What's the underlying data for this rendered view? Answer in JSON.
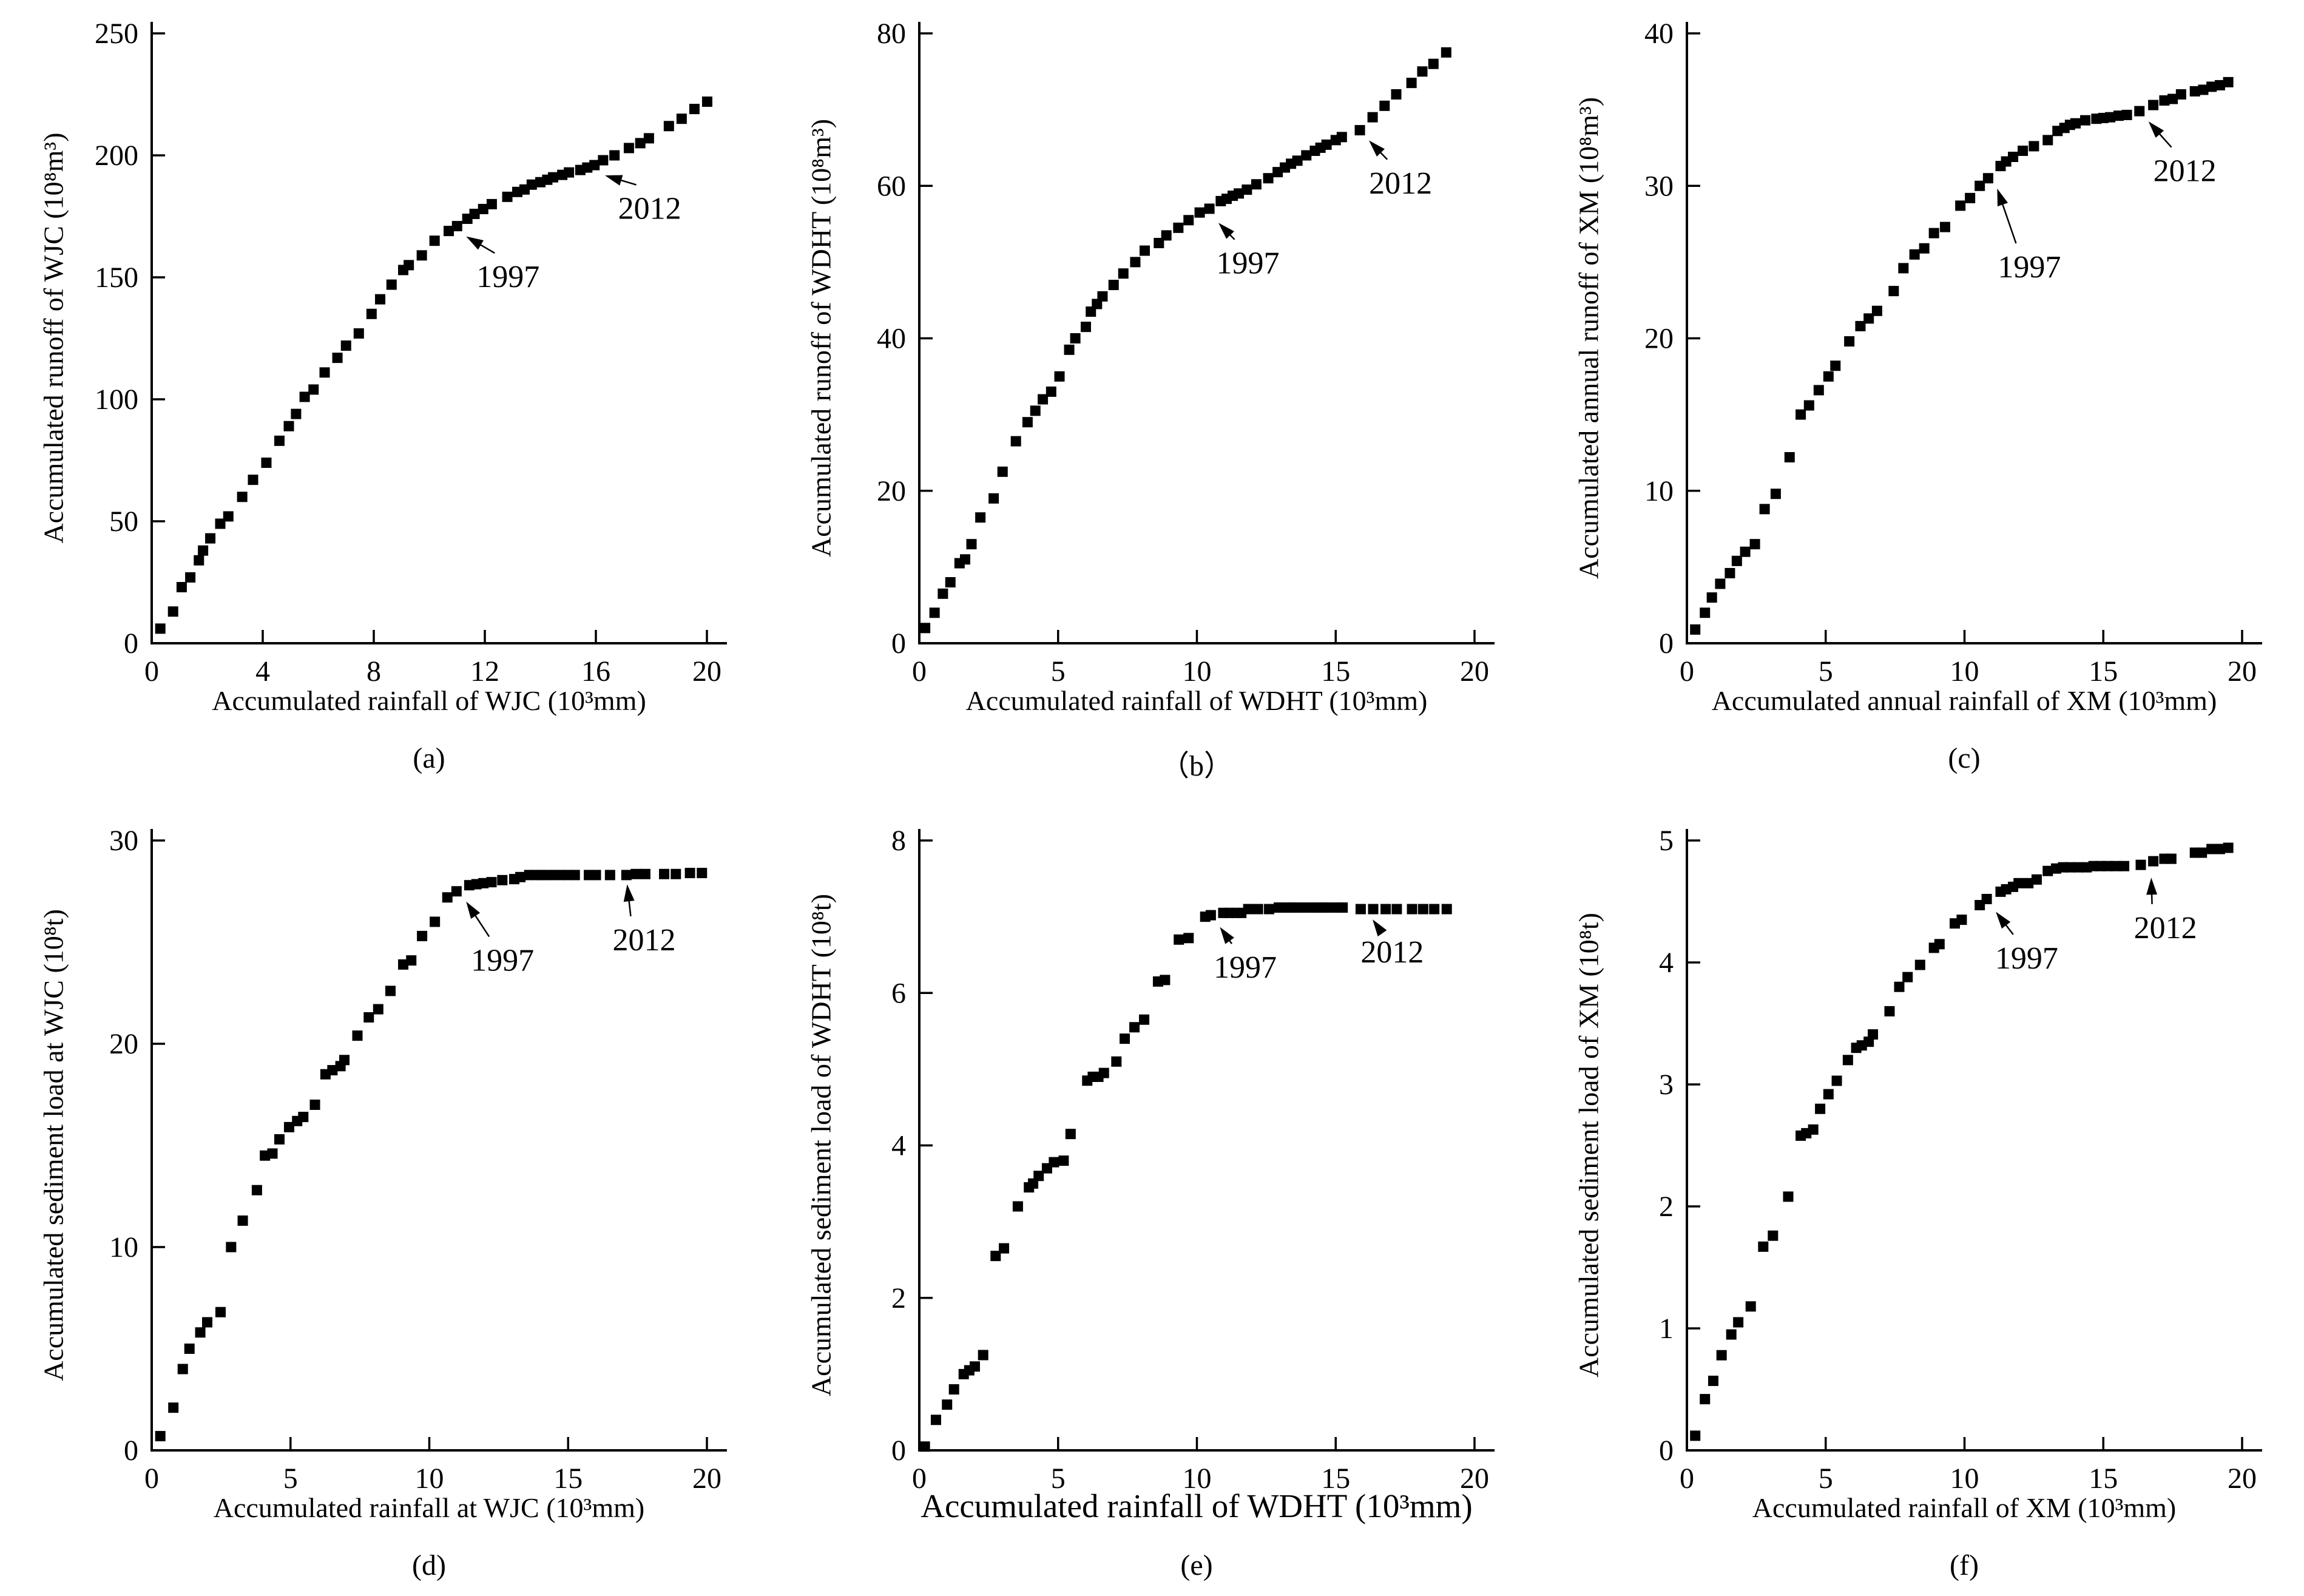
{
  "figure_title": "",
  "accent_color": "#000000",
  "chart_data": [
    {
      "type": "scatter",
      "panel": "a",
      "caption": "(a)",
      "xlabel": "Accumulated rainfall of WJC (10³mm)",
      "ylabel": "Accumulated runoff of WJC (10⁸m³)",
      "xlim": [
        0,
        20
      ],
      "ylim": [
        0,
        250
      ],
      "xticks": [
        0,
        4,
        8,
        12,
        16,
        20
      ],
      "yticks": [
        0,
        50,
        100,
        150,
        200,
        250
      ],
      "grid": false,
      "marker": "square",
      "color": "#000000",
      "x": [
        0.31,
        0.77,
        1.08,
        1.39,
        1.7,
        1.85,
        2.11,
        2.47,
        2.76,
        3.26,
        3.65,
        4.13,
        4.6,
        4.94,
        5.2,
        5.51,
        5.83,
        6.23,
        6.69,
        7.0,
        7.46,
        7.92,
        8.23,
        8.64,
        9.06,
        9.26,
        9.73,
        10.19,
        10.7,
        11.0,
        11.37,
        11.63,
        11.94,
        12.25,
        12.81,
        13.17,
        13.43,
        13.69,
        14.0,
        14.25,
        14.46,
        14.79,
        15.03,
        15.44,
        15.69,
        15.95,
        16.26,
        16.67,
        17.19,
        17.6,
        17.91,
        18.63,
        19.09,
        19.55,
        20.01
      ],
      "y": [
        6,
        13,
        23,
        27,
        34,
        38,
        43,
        49,
        52,
        60,
        67,
        74,
        83,
        89,
        94,
        101,
        104,
        111,
        117,
        122,
        127,
        135,
        141,
        147,
        153,
        155,
        159,
        165,
        169,
        171,
        174,
        176,
        178,
        180,
        183,
        185,
        186,
        188,
        189,
        190,
        191,
        192,
        193,
        194,
        195,
        196,
        198,
        200,
        203,
        205,
        207,
        212,
        215,
        219,
        222
      ],
      "annotations": [
        {
          "label": "1997",
          "point": [
            11.0,
            171
          ],
          "text": [
            11.7,
            146
          ]
        },
        {
          "label": "2012",
          "point": [
            16.0,
            196
          ],
          "text": [
            16.8,
            174
          ]
        }
      ]
    },
    {
      "type": "scatter",
      "panel": "b",
      "caption": "（b）",
      "xlabel": "Accumulated rainfall of WDHT (10³mm)",
      "ylabel": "Accumulated runoff of WDHT (10⁸m³)",
      "xlim": [
        0,
        20
      ],
      "ylim": [
        0,
        80
      ],
      "xticks": [
        0,
        5,
        10,
        15,
        20
      ],
      "yticks": [
        0,
        20,
        40,
        60,
        80
      ],
      "grid": false,
      "marker": "square",
      "color": "#000000",
      "x": [
        0.21,
        0.55,
        0.85,
        1.12,
        1.45,
        1.65,
        1.88,
        2.2,
        2.68,
        3.0,
        3.48,
        3.9,
        4.18,
        4.45,
        4.75,
        5.05,
        5.4,
        5.62,
        6.0,
        6.18,
        6.4,
        6.6,
        7.0,
        7.35,
        7.78,
        8.12,
        8.63,
        8.9,
        9.33,
        9.7,
        10.1,
        10.45,
        10.86,
        11.07,
        11.29,
        11.51,
        11.8,
        12.14,
        12.57,
        12.91,
        13.17,
        13.39,
        13.62,
        13.94,
        14.25,
        14.45,
        14.67,
        15.0,
        15.22,
        15.87,
        16.33,
        16.76,
        17.18,
        17.73,
        18.12,
        18.52,
        18.98
      ],
      "y": [
        2.0,
        4.0,
        6.5,
        8.0,
        10.5,
        11.0,
        13.0,
        16.5,
        19.0,
        22.5,
        26.5,
        29.0,
        30.5,
        32.0,
        33.0,
        35.0,
        38.5,
        40.0,
        41.5,
        43.5,
        44.5,
        45.5,
        47.0,
        48.5,
        50.0,
        51.5,
        52.5,
        53.5,
        54.5,
        55.5,
        56.5,
        57.0,
        58.0,
        58.3,
        58.7,
        59.0,
        59.5,
        60.2,
        61.0,
        61.8,
        62.4,
        62.9,
        63.3,
        64.0,
        64.6,
        65.0,
        65.4,
        66.0,
        66.4,
        67.3,
        69.0,
        70.5,
        72.0,
        73.5,
        75.0,
        76.0,
        77.5
      ],
      "annotations": [
        {
          "label": "1997",
          "point": [
            10.45,
            56.5
          ],
          "text": [
            10.7,
            48.5
          ]
        },
        {
          "label": "2012",
          "point": [
            15.87,
            67.3
          ],
          "text": [
            16.2,
            59.0
          ]
        }
      ]
    },
    {
      "type": "scatter",
      "panel": "c",
      "caption": "(c)",
      "xlabel": "Accumulated annual rainfall of XM (10³mm)",
      "ylabel": "Accumulated annual runoff of XM (10⁸m³)",
      "xlim": [
        0,
        20
      ],
      "ylim": [
        0,
        40
      ],
      "xticks": [
        0,
        5,
        10,
        15,
        20
      ],
      "yticks": [
        0,
        10,
        20,
        30,
        40
      ],
      "grid": false,
      "marker": "square",
      "color": "#000000",
      "x": [
        0.3,
        0.65,
        0.9,
        1.2,
        1.55,
        1.8,
        2.1,
        2.45,
        2.8,
        3.2,
        3.7,
        4.1,
        4.4,
        4.75,
        5.1,
        5.35,
        5.85,
        6.25,
        6.55,
        6.85,
        7.45,
        7.8,
        8.2,
        8.55,
        8.9,
        9.3,
        9.85,
        10.2,
        10.55,
        10.85,
        11.3,
        11.5,
        11.75,
        12.1,
        12.5,
        13.0,
        13.35,
        13.6,
        13.8,
        14.0,
        14.35,
        14.75,
        15.0,
        15.25,
        15.55,
        15.85,
        16.3,
        16.8,
        17.2,
        17.5,
        17.8,
        18.3,
        18.6,
        18.9,
        19.2,
        19.5
      ],
      "y": [
        0.9,
        2.0,
        3.0,
        3.9,
        4.6,
        5.4,
        6.0,
        6.5,
        8.8,
        9.8,
        12.2,
        15.0,
        15.6,
        16.6,
        17.5,
        18.2,
        19.8,
        20.8,
        21.3,
        21.8,
        23.1,
        24.6,
        25.5,
        25.9,
        26.9,
        27.3,
        28.7,
        29.2,
        30.0,
        30.5,
        31.3,
        31.6,
        31.9,
        32.3,
        32.6,
        33.0,
        33.6,
        33.8,
        34.0,
        34.1,
        34.3,
        34.4,
        34.45,
        34.5,
        34.6,
        34.65,
        34.9,
        35.3,
        35.6,
        35.7,
        36.0,
        36.2,
        36.3,
        36.5,
        36.6,
        36.8
      ],
      "annotations": [
        {
          "label": "1997",
          "point": [
            10.85,
            30.5
          ],
          "text": [
            11.2,
            24.0
          ]
        },
        {
          "label": "2012",
          "point": [
            16.3,
            34.9
          ],
          "text": [
            16.8,
            30.3
          ]
        }
      ]
    },
    {
      "type": "scatter",
      "panel": "d",
      "caption": "(d)",
      "xlabel": "Accumulated rainfall at WJC (10³mm)",
      "ylabel": "Accumulated sediment load at WJC (10⁸t)",
      "xlim": [
        0,
        20
      ],
      "ylim": [
        0,
        30
      ],
      "xticks": [
        0,
        5,
        10,
        15,
        20
      ],
      "yticks": [
        0,
        10,
        20,
        30
      ],
      "grid": false,
      "marker": "square",
      "color": "#000000",
      "x": [
        0.31,
        0.78,
        1.12,
        1.36,
        1.75,
        2.0,
        2.48,
        2.86,
        3.28,
        3.79,
        4.08,
        4.35,
        4.6,
        4.95,
        5.24,
        5.46,
        5.88,
        6.26,
        6.51,
        6.8,
        6.94,
        7.41,
        7.82,
        8.16,
        8.6,
        9.06,
        9.35,
        9.74,
        10.2,
        10.65,
        10.98,
        11.44,
        11.7,
        11.95,
        12.24,
        12.63,
        13.06,
        13.28,
        13.6,
        13.82,
        14.02,
        14.24,
        14.49,
        14.74,
        14.99,
        15.24,
        15.75,
        16.0,
        16.51,
        17.1,
        17.44,
        17.78,
        18.46,
        18.88,
        19.39,
        19.82
      ],
      "y": [
        0.7,
        2.1,
        4.0,
        5.0,
        5.8,
        6.3,
        6.8,
        10.0,
        11.3,
        12.8,
        14.5,
        14.6,
        15.3,
        15.9,
        16.2,
        16.4,
        17.0,
        18.5,
        18.7,
        18.9,
        19.2,
        20.4,
        21.3,
        21.7,
        22.6,
        23.9,
        24.1,
        25.3,
        26.0,
        27.2,
        27.5,
        27.8,
        27.85,
        27.9,
        27.95,
        28.05,
        28.1,
        28.2,
        28.3,
        28.3,
        28.3,
        28.3,
        28.3,
        28.3,
        28.3,
        28.3,
        28.3,
        28.3,
        28.3,
        28.3,
        28.35,
        28.35,
        28.35,
        28.35,
        28.4,
        28.4
      ],
      "annotations": [
        {
          "label": "1997",
          "point": [
            11.0,
            27.5
          ],
          "text": [
            11.5,
            23.6
          ]
        },
        {
          "label": "2012",
          "point": [
            16.8,
            28.35
          ],
          "text": [
            16.6,
            24.6
          ]
        }
      ]
    },
    {
      "type": "scatter",
      "panel": "e",
      "caption": "(e)",
      "xlabel": "Accumulated rainfall of WDHT (10³mm)",
      "ylabel": "Accumulated sediment load of WDHT (10⁸t)",
      "xlim": [
        0,
        20
      ],
      "ylim": [
        0,
        8
      ],
      "xticks": [
        0,
        5,
        10,
        15,
        20
      ],
      "yticks": [
        0,
        2,
        4,
        6,
        8
      ],
      "grid": false,
      "marker": "square",
      "color": "#000000",
      "x": [
        0.2,
        0.6,
        1.0,
        1.25,
        1.6,
        1.8,
        2.0,
        2.3,
        2.75,
        3.05,
        3.55,
        3.95,
        4.1,
        4.3,
        4.6,
        4.85,
        5.2,
        5.45,
        6.05,
        6.25,
        6.45,
        6.65,
        7.1,
        7.4,
        7.75,
        8.1,
        8.6,
        8.85,
        9.35,
        9.7,
        10.3,
        10.5,
        10.95,
        11.15,
        11.4,
        11.6,
        11.85,
        12.2,
        12.6,
        12.95,
        13.2,
        13.45,
        13.65,
        14.0,
        14.3,
        14.5,
        14.7,
        15.05,
        15.25,
        15.9,
        16.35,
        16.8,
        17.2,
        17.75,
        18.15,
        18.55,
        19.0
      ],
      "y": [
        0.05,
        0.4,
        0.6,
        0.8,
        1.0,
        1.05,
        1.1,
        1.25,
        2.55,
        2.65,
        3.2,
        3.45,
        3.5,
        3.6,
        3.7,
        3.78,
        3.8,
        4.15,
        4.85,
        4.9,
        4.9,
        4.95,
        5.1,
        5.4,
        5.55,
        5.65,
        6.15,
        6.17,
        6.7,
        6.72,
        7.0,
        7.02,
        7.05,
        7.05,
        7.05,
        7.05,
        7.1,
        7.1,
        7.1,
        7.12,
        7.12,
        7.12,
        7.12,
        7.12,
        7.12,
        7.12,
        7.12,
        7.12,
        7.12,
        7.1,
        7.1,
        7.1,
        7.1,
        7.1,
        7.1,
        7.1,
        7.1
      ],
      "annotations": [
        {
          "label": "1997",
          "point": [
            10.5,
            7.0
          ],
          "text": [
            10.6,
            6.2
          ]
        },
        {
          "label": "2012",
          "point": [
            16.0,
            7.1
          ],
          "text": [
            15.9,
            6.4
          ]
        }
      ]
    },
    {
      "type": "scatter",
      "panel": "f",
      "caption": "(f)",
      "xlabel": "Accumulated rainfall of XM (10³mm)",
      "ylabel": "Accumulated sediment load of XM (10⁸t)",
      "xlim": [
        0,
        20
      ],
      "ylim": [
        0,
        5
      ],
      "xticks": [
        0,
        5,
        10,
        15,
        20
      ],
      "yticks": [
        0,
        1,
        2,
        3,
        4,
        5
      ],
      "grid": false,
      "marker": "square",
      "color": "#000000",
      "x": [
        0.3,
        0.65,
        0.95,
        1.25,
        1.6,
        1.85,
        2.3,
        2.75,
        3.1,
        3.65,
        4.1,
        4.3,
        4.55,
        4.8,
        5.1,
        5.4,
        5.8,
        6.1,
        6.3,
        6.55,
        6.7,
        7.3,
        7.65,
        7.95,
        8.4,
        8.9,
        9.1,
        9.65,
        9.9,
        10.55,
        10.8,
        11.3,
        11.5,
        11.75,
        11.95,
        12.3,
        12.6,
        13.0,
        13.3,
        13.55,
        13.8,
        14.1,
        14.4,
        14.65,
        14.9,
        15.15,
        15.45,
        15.75,
        16.35,
        16.8,
        17.2,
        17.45,
        18.3,
        18.55,
        18.9,
        19.2,
        19.5
      ],
      "y": [
        0.12,
        0.42,
        0.57,
        0.78,
        0.95,
        1.05,
        1.18,
        1.67,
        1.76,
        2.08,
        2.58,
        2.6,
        2.63,
        2.8,
        2.92,
        3.03,
        3.2,
        3.3,
        3.32,
        3.35,
        3.41,
        3.6,
        3.8,
        3.88,
        3.98,
        4.12,
        4.15,
        4.32,
        4.35,
        4.47,
        4.52,
        4.58,
        4.6,
        4.62,
        4.65,
        4.65,
        4.68,
        4.75,
        4.77,
        4.78,
        4.78,
        4.78,
        4.78,
        4.79,
        4.79,
        4.79,
        4.79,
        4.79,
        4.8,
        4.83,
        4.85,
        4.85,
        4.9,
        4.9,
        4.93,
        4.93,
        4.94
      ],
      "annotations": [
        {
          "label": "1997",
          "point": [
            10.8,
            4.5
          ],
          "text": [
            11.1,
            3.95
          ]
        },
        {
          "label": "2012",
          "point": [
            16.4,
            4.78
          ],
          "text": [
            16.1,
            4.2
          ]
        }
      ]
    }
  ]
}
